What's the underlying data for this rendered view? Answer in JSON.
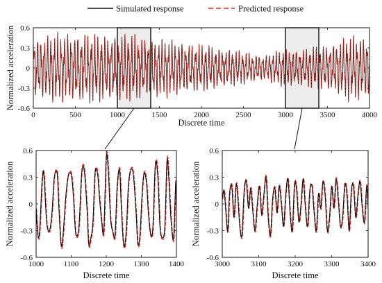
{
  "legend": {
    "placement": "top-center",
    "entries": [
      {
        "label": "Simulated response",
        "color": "#111111",
        "dash": "solid"
      },
      {
        "label": "Predicted response",
        "color": "#e8231b",
        "dash": "dashed"
      }
    ]
  },
  "chart_data": [
    {
      "id": "full",
      "type": "line",
      "xlabel": "Discrete time",
      "ylabel": "Normalized acceleration",
      "xlim": [
        0,
        4000
      ],
      "ylim": [
        -0.6,
        0.6
      ],
      "xticks": [
        0,
        500,
        1000,
        1500,
        2000,
        2500,
        3000,
        3500,
        4000
      ],
      "yticks": [
        -0.6,
        -0.3,
        0,
        0.3,
        0.6
      ],
      "grid": false,
      "highlight_boxes": [
        {
          "x": [
            1000,
            1400
          ],
          "y": [
            -0.6,
            0.6
          ]
        },
        {
          "x": [
            3000,
            3400
          ],
          "y": [
            -0.6,
            0.6
          ]
        }
      ],
      "series": [
        {
          "name": "Simulated response",
          "color": "#111111",
          "envelope_x": [
            0,
            250,
            500,
            750,
            1000,
            1250,
            1500,
            1750,
            2000,
            2250,
            2500,
            2750,
            3000,
            3250,
            3500,
            3750,
            4000
          ],
          "envelope_y": [
            0.48,
            0.52,
            0.55,
            0.52,
            0.53,
            0.5,
            0.45,
            0.42,
            0.36,
            0.32,
            0.25,
            0.2,
            0.3,
            0.3,
            0.36,
            0.5,
            0.48
          ]
        },
        {
          "name": "Predicted response",
          "color": "#e8231b"
        }
      ]
    },
    {
      "id": "zoom-1",
      "type": "line",
      "xlabel": "Discrete time",
      "ylabel": "Normalized acceleration",
      "xlim": [
        1000,
        1400
      ],
      "ylim": [
        -0.6,
        0.6
      ],
      "xticks": [
        1000,
        1100,
        1200,
        1300,
        1400
      ],
      "yticks": [
        -0.6,
        -0.3,
        0,
        0.3,
        0.6
      ],
      "grid": false,
      "series": [
        {
          "name": "Simulated response",
          "color": "#111111",
          "x": [
            1000,
            1005,
            1010,
            1017,
            1022,
            1030,
            1038,
            1045,
            1052,
            1060,
            1065,
            1071,
            1076,
            1085,
            1092,
            1100,
            1106,
            1112,
            1118,
            1123,
            1130,
            1137,
            1145,
            1150,
            1156,
            1162,
            1168,
            1175,
            1180,
            1187,
            1193,
            1200,
            1206,
            1212,
            1218,
            1225,
            1231,
            1238,
            1243,
            1250,
            1257,
            1263,
            1270,
            1277,
            1285,
            1290,
            1296,
            1302,
            1308,
            1315,
            1320,
            1327,
            1333,
            1340,
            1347,
            1353,
            1360,
            1367,
            1373,
            1378,
            1385,
            1392,
            1398,
            1400
          ],
          "y": [
            -0.05,
            -0.35,
            -0.3,
            0.25,
            0.33,
            -0.2,
            -0.3,
            -0.1,
            0.3,
            0.34,
            -0.05,
            -0.45,
            -0.38,
            0.1,
            0.32,
            0.33,
            0.1,
            -0.3,
            -0.35,
            -0.2,
            0.35,
            0.38,
            -0.05,
            -0.45,
            -0.38,
            -0.2,
            0.35,
            0.34,
            0.1,
            -0.2,
            -0.3,
            0.53,
            0.35,
            -0.15,
            -0.3,
            -0.35,
            0.2,
            0.38,
            -0.05,
            -0.47,
            -0.3,
            0.2,
            0.38,
            0.33,
            -0.1,
            -0.45,
            -0.35,
            0.1,
            0.35,
            0.22,
            -0.1,
            -0.35,
            -0.25,
            0.45,
            0.3,
            -0.25,
            -0.38,
            -0.25,
            0.48,
            0.3,
            -0.2,
            -0.38,
            0.25,
            -0.05
          ]
        },
        {
          "name": "Predicted response",
          "color": "#e8231b"
        }
      ]
    },
    {
      "id": "zoom-2",
      "type": "line",
      "xlabel": "Discrete time",
      "ylabel": "Normalized acceleration",
      "xlim": [
        3000,
        3400
      ],
      "ylim": [
        -0.6,
        0.6
      ],
      "xticks": [
        3000,
        3100,
        3200,
        3300,
        3400
      ],
      "yticks": [
        -0.6,
        -0.3,
        0,
        0.3,
        0.6
      ],
      "grid": false,
      "series": [
        {
          "name": "Simulated response",
          "color": "#111111",
          "x": [
            3000,
            3005,
            3010,
            3015,
            3020,
            3026,
            3032,
            3038,
            3043,
            3048,
            3054,
            3060,
            3066,
            3072,
            3078,
            3084,
            3090,
            3096,
            3102,
            3108,
            3114,
            3120,
            3126,
            3132,
            3138,
            3144,
            3150,
            3156,
            3162,
            3168,
            3174,
            3180,
            3186,
            3192,
            3198,
            3204,
            3210,
            3216,
            3222,
            3228,
            3234,
            3240,
            3246,
            3252,
            3258,
            3264,
            3270,
            3276,
            3282,
            3288,
            3294,
            3300,
            3306,
            3312,
            3318,
            3324,
            3330,
            3336,
            3342,
            3348,
            3354,
            3360,
            3366,
            3372,
            3378,
            3384,
            3390,
            3396,
            3400
          ],
          "y": [
            0.05,
            0.15,
            -0.1,
            -0.3,
            0.12,
            0.2,
            -0.15,
            0.22,
            0.05,
            -0.25,
            -0.35,
            0.15,
            0.25,
            -0.05,
            0.18,
            -0.1,
            -0.3,
            0.0,
            0.2,
            -0.12,
            0.1,
            0.3,
            -0.15,
            -0.35,
            0.05,
            0.18,
            -0.1,
            0.2,
            0.0,
            -0.25,
            0.1,
            0.28,
            -0.1,
            -0.3,
            0.22,
            0.15,
            -0.2,
            0.0,
            0.28,
            -0.05,
            -0.25,
            0.15,
            0.2,
            -0.1,
            -0.3,
            0.12,
            -0.05,
            0.25,
            0.1,
            -0.3,
            -0.15,
            0.2,
            -0.05,
            0.28,
            0.05,
            -0.25,
            -0.15,
            0.22,
            0.1,
            -0.3,
            0.15,
            0.2,
            -0.15,
            0.1,
            0.25,
            -0.05,
            -0.2,
            0.2,
            -0.05
          ]
        },
        {
          "name": "Predicted response",
          "color": "#e8231b"
        }
      ]
    }
  ]
}
